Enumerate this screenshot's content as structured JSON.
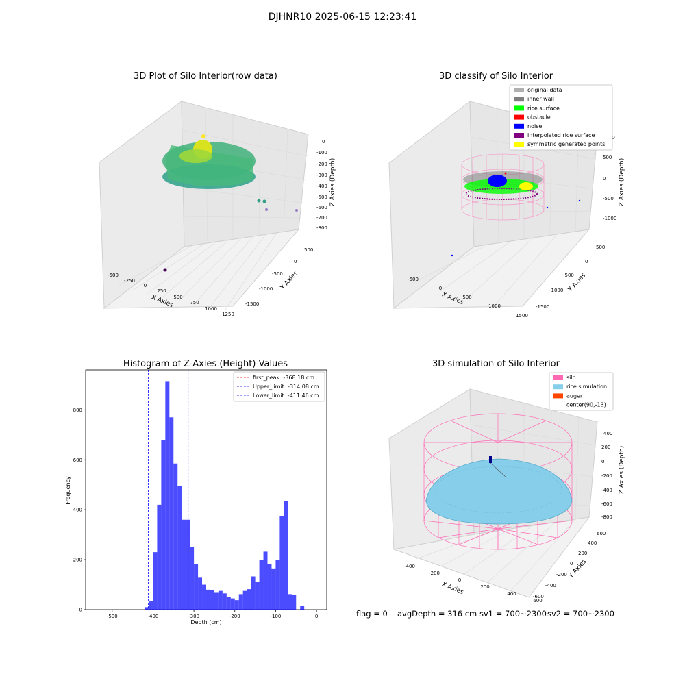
{
  "figure": {
    "suptitle": "DJHNR10 2025-06-15 12:23:41",
    "footer": {
      "flag": "flag = 0",
      "avg": "avgDepth = 316 cm",
      "sv1": "sv1 = 700~2300",
      "sv2": "sv2 = 700~2300"
    }
  },
  "chart_data": [
    {
      "type": "scatter",
      "title": "3D Plot of Silo Interior(row data)",
      "xlabel": "X Axies",
      "ylabel": "Y Axies",
      "zlabel": "Z Axies (Depth)",
      "x_ticks": [
        "-500",
        "-250",
        "0",
        "250",
        "500",
        "750",
        "1000",
        "1250"
      ],
      "y_ticks": [
        "500",
        "0",
        "-500",
        "-1000",
        "-1500"
      ],
      "z_ticks": [
        "0",
        "-100",
        "-200",
        "-300",
        "-400",
        "-500",
        "-600",
        "-700",
        "-800"
      ],
      "colormap": "viridis"
    },
    {
      "type": "scatter",
      "title": "3D classify of Silo Interior",
      "xlabel": "X Axies",
      "ylabel": "Y Axies",
      "zlabel": "Z Axies (Depth)",
      "x_ticks": [
        "-500",
        "0",
        "500",
        "1000",
        "1500"
      ],
      "y_ticks": [
        "500",
        "0",
        "-500",
        "-1000",
        "-1500"
      ],
      "z_ticks": [
        "1000",
        "500",
        "0",
        "-500",
        "-1000"
      ],
      "legend": [
        {
          "label": "original data",
          "color": "#b0b0b0"
        },
        {
          "label": "inner wall",
          "color": "#808080"
        },
        {
          "label": "rice surface",
          "color": "#00ff00"
        },
        {
          "label": "obstacle",
          "color": "#ff0000"
        },
        {
          "label": "noise",
          "color": "#0000ff"
        },
        {
          "label": "interpolated rice surface",
          "color": "#800080"
        },
        {
          "label": "symmetric generated points",
          "color": "#ffff00"
        }
      ],
      "legend_position": "top-right"
    },
    {
      "type": "bar",
      "title": "Histogram of Z-Axies (Height) Values",
      "xlabel": "Depth (cm)",
      "ylabel": "Frequency",
      "xlim": [
        -565,
        25
      ],
      "ylim": [
        0,
        960
      ],
      "x_ticks": [
        -500,
        -400,
        -300,
        -200,
        -100,
        0
      ],
      "y_ticks": [
        0,
        200,
        400,
        600,
        800
      ],
      "bin_width": 10,
      "bins": [
        [
          -420,
          10
        ],
        [
          -410,
          35
        ],
        [
          -400,
          230
        ],
        [
          -390,
          420
        ],
        [
          -380,
          680
        ],
        [
          -370,
          915
        ],
        [
          -360,
          770
        ],
        [
          -350,
          585
        ],
        [
          -340,
          495
        ],
        [
          -330,
          360
        ],
        [
          -320,
          360
        ],
        [
          -310,
          250
        ],
        [
          -300,
          183
        ],
        [
          -290,
          128
        ],
        [
          -280,
          100
        ],
        [
          -270,
          80
        ],
        [
          -260,
          78
        ],
        [
          -250,
          70
        ],
        [
          -240,
          75
        ],
        [
          -230,
          65
        ],
        [
          -220,
          52
        ],
        [
          -210,
          45
        ],
        [
          -200,
          38
        ],
        [
          -190,
          62
        ],
        [
          -180,
          75
        ],
        [
          -170,
          82
        ],
        [
          -160,
          133
        ],
        [
          -150,
          110
        ],
        [
          -140,
          200
        ],
        [
          -130,
          232
        ],
        [
          -120,
          183
        ],
        [
          -110,
          165
        ],
        [
          -100,
          198
        ],
        [
          -90,
          375
        ],
        [
          -80,
          435
        ],
        [
          -70,
          62
        ],
        [
          -60,
          58
        ],
        [
          -50,
          0
        ],
        [
          -40,
          16
        ]
      ],
      "bar_color": "#0000ff",
      "lines": [
        {
          "label": "first_peak: -368.18 cm",
          "x": -368.18,
          "color": "#ff0000"
        },
        {
          "label": "Upper_limit: -314.08 cm",
          "x": -314.08,
          "color": "#0000ff"
        },
        {
          "label": "Lower_limit: -411.46 cm",
          "x": -411.46,
          "color": "#0000ff"
        }
      ],
      "legend_position": "top-right"
    },
    {
      "type": "scatter",
      "title": "3D simulation of Silo Interior",
      "xlabel": "X Axies",
      "ylabel": "Y Axies",
      "zlabel": "Z Axies (Depth)",
      "x_ticks": [
        "-400",
        "-200",
        "0",
        "200",
        "400",
        "600"
      ],
      "y_ticks": [
        "600",
        "400",
        "200",
        "0",
        "-200",
        "-400",
        "-600"
      ],
      "z_ticks": [
        "400",
        "200",
        "0",
        "-200",
        "-400",
        "-600",
        "-800"
      ],
      "legend": [
        {
          "label": "silo",
          "color": "#ff69b4"
        },
        {
          "label": "rice simulation",
          "color": "#87ceeb"
        },
        {
          "label": "auger",
          "color": "#ff4500"
        },
        {
          "label": "center(90,-13)",
          "color": ""
        }
      ],
      "legend_position": "top-right"
    }
  ]
}
